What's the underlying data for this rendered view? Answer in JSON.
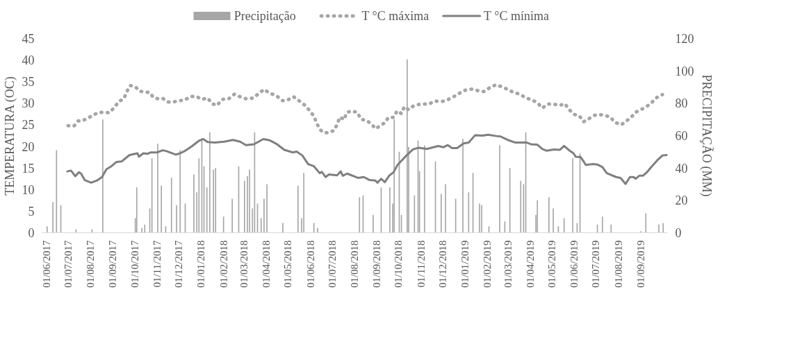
{
  "chart_data": {
    "type": "line",
    "ylabel": "TEMPERATURA (OC)",
    "y2label": "PRECIPITAÇÃO (MM)",
    "legend": "top",
    "xlim": [
      "2017-05-26",
      "2019-10-08"
    ],
    "ylim": [
      0,
      45
    ],
    "yticks": [
      0,
      5,
      10,
      15,
      20,
      25,
      30,
      35,
      40,
      45
    ],
    "y2lim": [
      0,
      120
    ],
    "y2ticks": [
      0,
      20,
      40,
      60,
      80,
      100,
      120
    ],
    "xticks": [
      {
        "value": "2017-06-01",
        "label": "01/06/2017"
      },
      {
        "value": "2017-07-01",
        "label": "01/07/2017"
      },
      {
        "value": "2017-08-01",
        "label": "01/08/2017"
      },
      {
        "value": "2017-09-01",
        "label": "01/09/2017"
      },
      {
        "value": "2017-10-01",
        "label": "01/10/2017"
      },
      {
        "value": "2017-11-01",
        "label": "01/11/2017"
      },
      {
        "value": "2017-12-01",
        "label": "01/12/2017"
      },
      {
        "value": "2018-01-01",
        "label": "01/01/2018"
      },
      {
        "value": "2018-02-01",
        "label": "01/02/2018"
      },
      {
        "value": "2018-03-01",
        "label": "01/03/2018"
      },
      {
        "value": "2018-04-01",
        "label": "01/04/2018"
      },
      {
        "value": "2018-05-01",
        "label": "01/05/2018"
      },
      {
        "value": "2018-06-01",
        "label": "01/06/2018"
      },
      {
        "value": "2018-07-01",
        "label": "01/07/2018"
      },
      {
        "value": "2018-08-01",
        "label": "01/08/2018"
      },
      {
        "value": "2018-09-01",
        "label": "01/09/2018"
      },
      {
        "value": "2018-10-01",
        "label": "01/10/2018"
      },
      {
        "value": "2018-11-01",
        "label": "01/11/2018"
      },
      {
        "value": "2018-12-01",
        "label": "01/12/2018"
      },
      {
        "value": "2019-01-01",
        "label": "01/01/2019"
      },
      {
        "value": "2019-02-01",
        "label": "01/02/2019"
      },
      {
        "value": "2019-03-01",
        "label": "01/03/2019"
      },
      {
        "value": "2019-04-01",
        "label": "01/04/2019"
      },
      {
        "value": "2019-05-01",
        "label": "01/05/2019"
      },
      {
        "value": "2019-06-01",
        "label": "01/06/2019"
      },
      {
        "value": "2019-07-01",
        "label": "01/07/2019"
      },
      {
        "value": "2019-08-01",
        "label": "01/08/2019"
      },
      {
        "value": "2019-09-01",
        "label": "01/09/2019"
      }
    ],
    "series": [
      {
        "name": "Precipitação",
        "type": "bar",
        "axis": "y2",
        "color": "#a6a6a6",
        "x": [
          "2017-06-02",
          "2017-06-10",
          "2017-06-15",
          "2017-06-21",
          "2017-07-12",
          "2017-08-03",
          "2017-08-18",
          "2017-10-02",
          "2017-10-04",
          "2017-10-11",
          "2017-10-15",
          "2017-10-22",
          "2017-10-25",
          "2017-11-02",
          "2017-11-07",
          "2017-11-13",
          "2017-11-21",
          "2017-11-28",
          "2017-12-03",
          "2017-12-10",
          "2017-12-22",
          "2017-12-26",
          "2017-12-29",
          "2018-01-02",
          "2018-01-05",
          "2018-01-09",
          "2018-01-13",
          "2018-01-18",
          "2018-01-21",
          "2018-02-01",
          "2018-02-13",
          "2018-02-22",
          "2018-03-02",
          "2018-03-06",
          "2018-03-09",
          "2018-03-13",
          "2018-03-16",
          "2018-03-20",
          "2018-03-25",
          "2018-03-29",
          "2018-04-02",
          "2018-04-24",
          "2018-05-15",
          "2018-05-20",
          "2018-05-23",
          "2018-06-06",
          "2018-06-11",
          "2018-08-08",
          "2018-08-13",
          "2018-08-27",
          "2018-09-07",
          "2018-09-19",
          "2018-09-23",
          "2018-09-25",
          "2018-10-02",
          "2018-10-05",
          "2018-10-13",
          "2018-10-15",
          "2018-10-23",
          "2018-10-28",
          "2018-10-30",
          "2018-11-06",
          "2018-11-21",
          "2018-11-29",
          "2018-12-05",
          "2018-12-19",
          "2018-12-29",
          "2019-01-06",
          "2019-01-12",
          "2019-01-21",
          "2019-01-24",
          "2019-02-03",
          "2019-02-18",
          "2019-02-25",
          "2019-03-04",
          "2019-03-19",
          "2019-03-23",
          "2019-03-26",
          "2019-04-09",
          "2019-04-11",
          "2019-04-27",
          "2019-05-03",
          "2019-05-10",
          "2019-05-18",
          "2019-05-30",
          "2019-06-05",
          "2019-06-09",
          "2019-07-03",
          "2019-07-10",
          "2019-07-22",
          "2019-09-01",
          "2019-09-08",
          "2019-09-26",
          "2019-10-02"
        ],
        "values": [
          4,
          19,
          51,
          17,
          2,
          2,
          70,
          9,
          28,
          3,
          5,
          15,
          46,
          55,
          29,
          4,
          34,
          17,
          51,
          18,
          36,
          25,
          46,
          57,
          41,
          28,
          62,
          39,
          40,
          10,
          21,
          41,
          32,
          35,
          39,
          15,
          62,
          18,
          9,
          21,
          30,
          6,
          29,
          9,
          37,
          6,
          3,
          22,
          23,
          11,
          28,
          28,
          18,
          70,
          50,
          11,
          107,
          53,
          23,
          57,
          38,
          54,
          44,
          24,
          30,
          21,
          58,
          25,
          37,
          18,
          17,
          4,
          54,
          7,
          40,
          32,
          30,
          62,
          11,
          20,
          22,
          15,
          4,
          9,
          46,
          6,
          49,
          5,
          10,
          5,
          1,
          12,
          5,
          6
        ]
      },
      {
        "name": "T °C máxima",
        "line_style": "dotted",
        "color": "#a6a6a6",
        "x": [
          "2017-07-01",
          "2017-07-09",
          "2017-07-15",
          "2017-07-20",
          "2017-07-28",
          "2017-08-05",
          "2017-08-13",
          "2017-08-19",
          "2017-08-27",
          "2017-09-03",
          "2017-09-09",
          "2017-09-16",
          "2017-09-20",
          "2017-09-25",
          "2017-10-02",
          "2017-10-08",
          "2017-10-15",
          "2017-10-22",
          "2017-10-27",
          "2017-11-03",
          "2017-11-09",
          "2017-11-16",
          "2017-11-24",
          "2017-12-01",
          "2017-12-09",
          "2017-12-18",
          "2017-12-25",
          "2018-01-02",
          "2018-01-10",
          "2018-01-16",
          "2018-01-23",
          "2018-01-30",
          "2018-02-08",
          "2018-02-16",
          "2018-02-24",
          "2018-03-05",
          "2018-03-14",
          "2018-03-22",
          "2018-03-29",
          "2018-04-06",
          "2018-04-15",
          "2018-04-23",
          "2018-04-30",
          "2018-05-09",
          "2018-05-17",
          "2018-05-24",
          "2018-05-31",
          "2018-06-06",
          "2018-06-10",
          "2018-06-14",
          "2018-06-19",
          "2018-06-26",
          "2018-07-04",
          "2018-07-08",
          "2018-07-12",
          "2018-07-18",
          "2018-07-21",
          "2018-07-27",
          "2018-08-05",
          "2018-08-10",
          "2018-08-18",
          "2018-08-25",
          "2018-08-30",
          "2018-09-06",
          "2018-09-12",
          "2018-09-17",
          "2018-09-24",
          "2018-09-29",
          "2018-10-05",
          "2018-10-09",
          "2018-10-15",
          "2018-10-21",
          "2018-10-28",
          "2018-11-05",
          "2018-11-12",
          "2018-11-20",
          "2018-11-30",
          "2018-12-08",
          "2018-12-16",
          "2018-12-24",
          "2019-01-01",
          "2019-01-11",
          "2019-01-19",
          "2019-01-27",
          "2019-02-05",
          "2019-02-13",
          "2019-02-21",
          "2019-03-01",
          "2019-03-09",
          "2019-03-18",
          "2019-03-26",
          "2019-04-02",
          "2019-04-11",
          "2019-04-18",
          "2019-04-25",
          "2019-05-03",
          "2019-05-12",
          "2019-05-19",
          "2019-05-25",
          "2019-06-01",
          "2019-06-08",
          "2019-06-14",
          "2019-06-21",
          "2019-06-29",
          "2019-07-05",
          "2019-07-13",
          "2019-07-21",
          "2019-07-27",
          "2019-08-05",
          "2019-08-13",
          "2019-08-19",
          "2019-08-25",
          "2019-09-01",
          "2019-09-08",
          "2019-09-16",
          "2019-09-22",
          "2019-10-01"
        ],
        "values": [
          24.8,
          24.7,
          25.9,
          25.9,
          26.5,
          27.3,
          27.9,
          27.9,
          27.8,
          29.0,
          30.4,
          31.0,
          32.6,
          34.1,
          33.8,
          32.8,
          32.6,
          32.5,
          31.3,
          31.0,
          31.1,
          30.3,
          30.3,
          30.6,
          30.7,
          31.6,
          31.6,
          30.9,
          31.2,
          29.9,
          29.5,
          30.9,
          31.0,
          32.1,
          31.5,
          31.0,
          31.2,
          32.3,
          33.2,
          32.3,
          31.8,
          30.6,
          30.7,
          31.5,
          30.5,
          29.6,
          28.3,
          27.0,
          25.3,
          24.0,
          23.2,
          23.2,
          23.7,
          25.1,
          26.8,
          26.2,
          27.8,
          28.2,
          27.9,
          26.3,
          26.0,
          25.1,
          24.1,
          24.8,
          25.5,
          26.7,
          26.7,
          28.2,
          27.6,
          29.2,
          28.5,
          29.3,
          29.7,
          29.8,
          29.8,
          30.5,
          30.4,
          30.8,
          31.5,
          32.3,
          33.0,
          33.3,
          32.9,
          32.7,
          33.7,
          34.3,
          33.8,
          33.2,
          32.5,
          32.1,
          31.2,
          30.9,
          30.1,
          28.9,
          29.8,
          29.8,
          29.5,
          29.9,
          28.5,
          27.4,
          27.1,
          25.7,
          26.4,
          27.2,
          27.4,
          27.2,
          26.8,
          25.6,
          25.0,
          26.0,
          26.8,
          27.9,
          28.5,
          29.1,
          30.1,
          31.2,
          32.0
        ]
      },
      {
        "name": "T °C mínima",
        "line_style": "solid",
        "color": "#7f7f7f",
        "x": [
          "2017-06-30",
          "2017-07-05",
          "2017-07-11",
          "2017-07-16",
          "2017-07-19",
          "2017-07-24",
          "2017-08-02",
          "2017-08-10",
          "2017-08-17",
          "2017-08-23",
          "2017-08-29",
          "2017-09-06",
          "2017-09-13",
          "2017-09-18",
          "2017-09-24",
          "2017-10-05",
          "2017-10-07",
          "2017-10-13",
          "2017-10-19",
          "2017-10-23",
          "2017-11-01",
          "2017-11-09",
          "2017-11-14",
          "2017-11-27",
          "2017-12-03",
          "2017-12-09",
          "2017-12-19",
          "2017-12-29",
          "2018-01-04",
          "2018-01-10",
          "2018-01-20",
          "2018-02-02",
          "2018-02-14",
          "2018-02-24",
          "2018-03-04",
          "2018-03-15",
          "2018-03-28",
          "2018-04-06",
          "2018-04-16",
          "2018-04-26",
          "2018-05-08",
          "2018-05-13",
          "2018-05-21",
          "2018-05-29",
          "2018-06-06",
          "2018-06-14",
          "2018-06-17",
          "2018-06-22",
          "2018-06-27",
          "2018-07-08",
          "2018-07-13",
          "2018-07-16",
          "2018-07-22",
          "2018-08-06",
          "2018-08-14",
          "2018-08-22",
          "2018-08-30",
          "2018-09-02",
          "2018-09-07",
          "2018-09-12",
          "2018-09-18",
          "2018-09-24",
          "2018-09-30",
          "2018-10-12",
          "2018-10-21",
          "2018-10-29",
          "2018-11-09",
          "2018-11-25",
          "2018-12-02",
          "2018-12-08",
          "2018-12-14",
          "2018-12-21",
          "2018-12-30",
          "2019-01-06",
          "2019-01-15",
          "2019-01-25",
          "2019-02-02",
          "2019-02-13",
          "2019-02-19",
          "2019-03-01",
          "2019-03-11",
          "2019-03-27",
          "2019-04-02",
          "2019-04-11",
          "2019-04-18",
          "2019-04-24",
          "2019-05-04",
          "2019-05-12",
          "2019-05-18",
          "2019-05-25",
          "2019-05-31",
          "2019-06-03",
          "2019-06-10",
          "2019-06-14",
          "2019-06-17",
          "2019-06-27",
          "2019-07-03",
          "2019-07-10",
          "2019-07-16",
          "2019-07-23",
          "2019-07-29",
          "2019-08-04",
          "2019-08-11",
          "2019-08-17",
          "2019-08-22",
          "2019-08-25",
          "2019-08-30",
          "2019-09-04",
          "2019-09-10",
          "2019-09-16",
          "2019-09-24",
          "2019-10-01",
          "2019-10-07"
        ],
        "values": [
          14.2,
          14.4,
          13.1,
          14.0,
          13.7,
          12.2,
          11.6,
          12.1,
          12.9,
          14.7,
          15.3,
          16.4,
          16.5,
          17.2,
          18.0,
          18.4,
          17.6,
          18.4,
          18.3,
          18.6,
          18.6,
          19.1,
          18.9,
          18.1,
          18.4,
          18.9,
          20.0,
          21.3,
          21.7,
          21.0,
          20.9,
          21.1,
          21.5,
          21.1,
          20.3,
          20.5,
          21.7,
          21.4,
          20.5,
          19.2,
          18.6,
          18.8,
          17.9,
          15.9,
          15.4,
          13.8,
          14.1,
          12.9,
          13.5,
          13.3,
          14.2,
          13.2,
          13.7,
          12.7,
          12.9,
          12.2,
          12.1,
          11.6,
          12.5,
          11.7,
          13.2,
          14.0,
          15.8,
          17.9,
          19.3,
          19.7,
          19.4,
          20.1,
          19.8,
          20.3,
          19.6,
          19.6,
          20.7,
          20.9,
          22.6,
          22.5,
          22.7,
          22.4,
          22.3,
          21.5,
          20.9,
          20.9,
          20.5,
          20.4,
          19.4,
          19.0,
          19.3,
          19.2,
          20.1,
          19.1,
          18.4,
          17.6,
          17.5,
          16.5,
          15.7,
          15.9,
          15.8,
          15.2,
          13.8,
          13.3,
          12.9,
          12.7,
          11.3,
          12.9,
          12.9,
          12.5,
          13.2,
          13.2,
          14.1,
          15.3,
          16.8,
          17.9,
          18.0
        ]
      }
    ]
  }
}
